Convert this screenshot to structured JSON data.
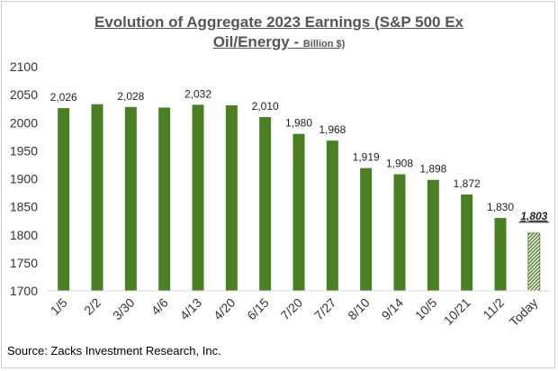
{
  "chart_data": {
    "type": "bar",
    "title_line1": "Evolution of Aggregate 2023 Earnings (S&P 500 Ex",
    "title_line2": "Oil/Energy - ",
    "title_unit": "Billion $)",
    "categories": [
      "1/5",
      "2/2",
      "3/30",
      "4/6",
      "4/13",
      "4/20",
      "6/15",
      "7/20",
      "7/27",
      "8/10",
      "9/14",
      "10/5",
      "10/21",
      "11/2",
      "Today"
    ],
    "values": [
      2026,
      2033,
      2028,
      2027,
      2032,
      2031,
      2010,
      1980,
      1968,
      1919,
      1908,
      1898,
      1872,
      1830,
      1803
    ],
    "data_labels": [
      "2,026",
      "",
      "2,028",
      "",
      "2,032",
      "",
      "2,010",
      "1,980",
      "1,968",
      "1,919",
      "1,908",
      "1,898",
      "1,872",
      "1,830",
      "1,803"
    ],
    "ylim": [
      1700,
      2100
    ],
    "yticks": [
      1700,
      1750,
      1800,
      1850,
      1900,
      1950,
      2000,
      2050,
      2100
    ],
    "xlabel": "",
    "ylabel": "",
    "grid": false,
    "legend": "none",
    "bar_color": "#4a7f24",
    "highlight_bar": "Today",
    "highlight_style": "hatched-green"
  },
  "source": "Source: Zacks Investment Research, Inc."
}
